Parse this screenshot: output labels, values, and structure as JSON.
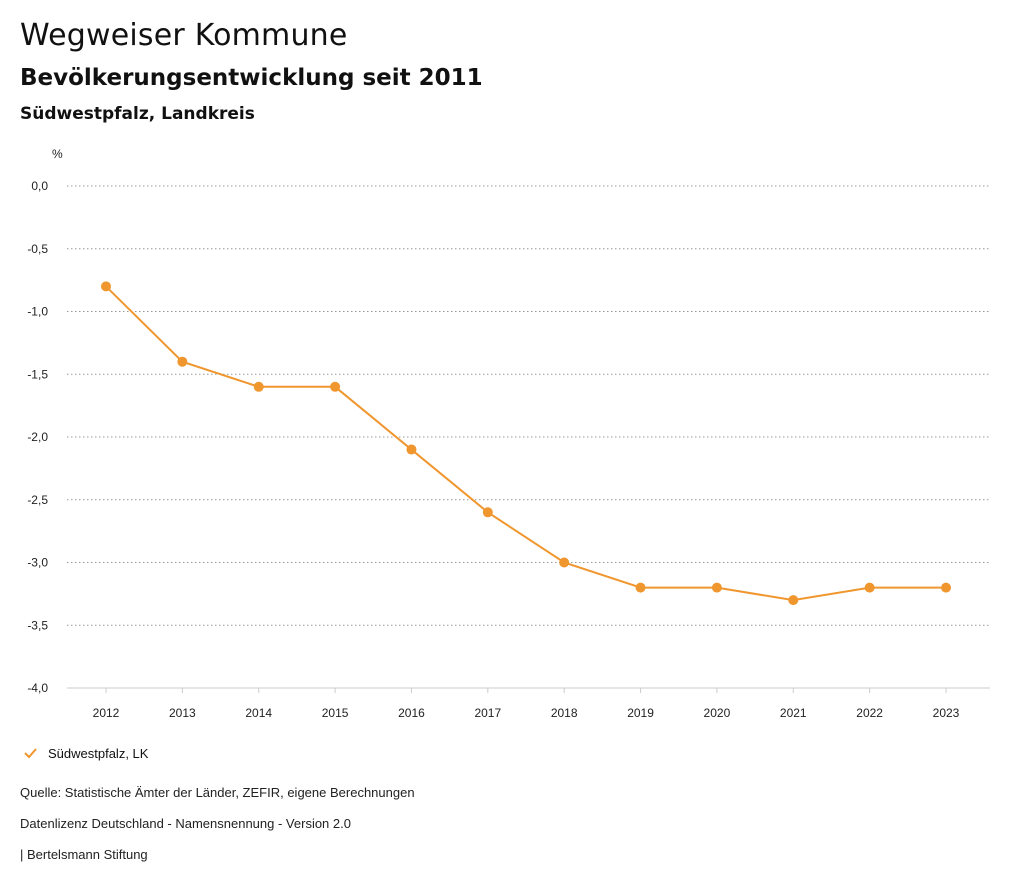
{
  "header": {
    "title": "Wegweiser Kommune",
    "subtitle": "Bevölkerungsentwicklung seit 2011",
    "region": "Südwestpfalz, Landkreis"
  },
  "legend": {
    "label": "Südwestpfalz, LK",
    "icon": "check-icon"
  },
  "footer": {
    "source": "Quelle: Statistische Ämter der Länder, ZEFIR, eigene Berechnungen",
    "license": "Datenlizenz Deutschland - Namensnennung - Version 2.0",
    "publisher": "| Bertelsmann Stiftung"
  },
  "colors": {
    "series": "#F0962E",
    "grid": "#999999"
  },
  "chart_data": {
    "type": "line",
    "title": "Bevölkerungsentwicklung seit 2011",
    "xlabel": "",
    "ylabel": "%",
    "categories": [
      "2012",
      "2013",
      "2014",
      "2015",
      "2016",
      "2017",
      "2018",
      "2019",
      "2020",
      "2021",
      "2022",
      "2023"
    ],
    "series": [
      {
        "name": "Südwestpfalz, LK",
        "values": [
          -0.8,
          -1.4,
          -1.6,
          -1.6,
          -2.1,
          -2.6,
          -3.0,
          -3.2,
          -3.2,
          -3.3,
          -3.2,
          -3.2
        ]
      }
    ],
    "yticks": [
      0.0,
      -0.5,
      -1.0,
      -1.5,
      -2.0,
      -2.5,
      -3.0,
      -3.5,
      -4.0
    ],
    "ytick_labels": [
      "0,0",
      "-0,5",
      "-1,0",
      "-1,5",
      "-2,0",
      "-2,5",
      "-3,0",
      "-3,5",
      "-4,0"
    ],
    "ylim": [
      -4.0,
      0.0
    ],
    "grid": true,
    "legend_position": "bottom-left"
  }
}
